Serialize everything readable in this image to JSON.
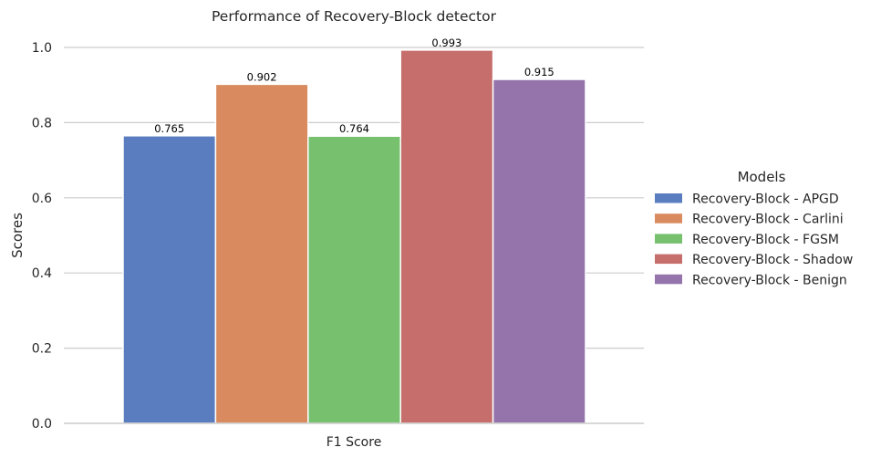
{
  "chart_data": {
    "type": "bar",
    "title": "Performance of Recovery-Block detector",
    "xlabel": "",
    "ylabel": "Scores",
    "categories": [
      "F1 Score"
    ],
    "ylim": [
      0,
      1.03
    ],
    "yticks": [
      "0.0",
      "0.2",
      "0.4",
      "0.6",
      "0.8",
      "1.0"
    ],
    "grid": true,
    "legend": {
      "title": "Models",
      "placement": "right"
    },
    "series": [
      {
        "name": "Recovery-Block - APGD",
        "values": [
          0.765
        ],
        "label": "0.765",
        "color": "#5a7dc0"
      },
      {
        "name": "Recovery-Block - Carlini",
        "values": [
          0.902
        ],
        "label": "0.902",
        "color": "#d98b5f"
      },
      {
        "name": "Recovery-Block - FGSM",
        "values": [
          0.764
        ],
        "label": "0.764",
        "color": "#76c06e"
      },
      {
        "name": "Recovery-Block - Shadow",
        "values": [
          0.993
        ],
        "label": "0.993",
        "color": "#c56e6b"
      },
      {
        "name": "Recovery-Block - Benign",
        "values": [
          0.915
        ],
        "label": "0.915",
        "color": "#9474aa"
      }
    ]
  }
}
